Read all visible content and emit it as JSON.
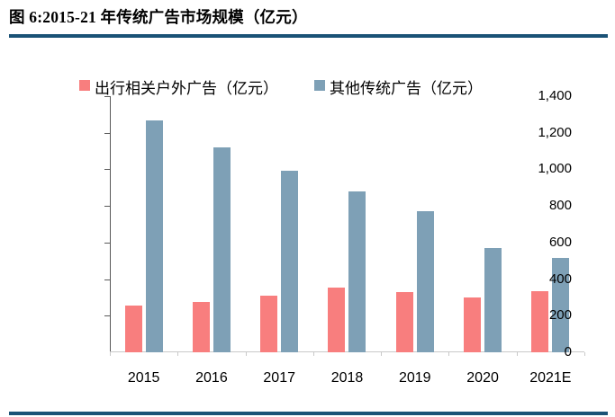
{
  "header": {
    "title": "图 6:2015-21 年传统广告市场规模（亿元）",
    "rule_color": "#1A5276"
  },
  "chart_data": {
    "type": "bar",
    "title": "2015-21 年传统广告市场规模（亿元）",
    "categories": [
      "2015",
      "2016",
      "2017",
      "2018",
      "2019",
      "2020",
      "2021E"
    ],
    "series": [
      {
        "name": "出行相关户外广告（亿元）",
        "color": "#F87E7E",
        "values": [
          255,
          275,
          310,
          355,
          330,
          300,
          335
        ]
      },
      {
        "name": "其他传统广告（亿元）",
        "color": "#7EA0B6",
        "values": [
          1265,
          1120,
          990,
          880,
          770,
          570,
          515
        ]
      }
    ],
    "xlabel": "",
    "ylabel": "",
    "ylim": [
      0,
      1400
    ],
    "ytick_step": 200,
    "yticks": [
      "0",
      "200",
      "400",
      "600",
      "800",
      "1,000",
      "1,200",
      "1,400"
    ],
    "legend_position": "top",
    "grid": false,
    "axis_color": "#595959",
    "baseline_color": "#C9C9C9"
  }
}
